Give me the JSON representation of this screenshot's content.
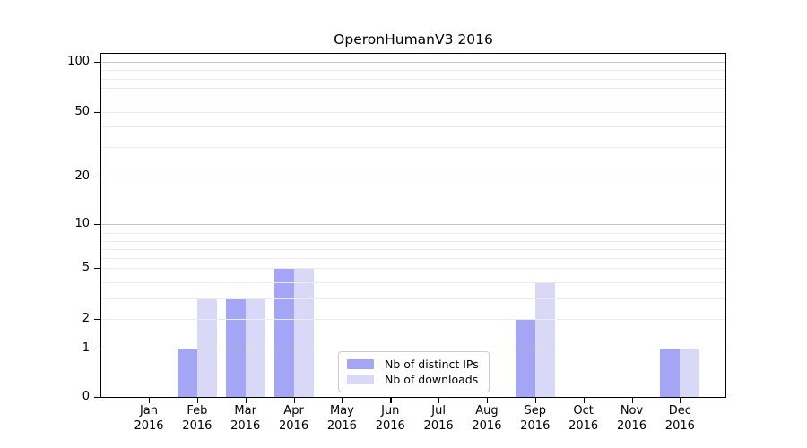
{
  "figure": {
    "title": "OperonHumanV3 2016"
  },
  "chart_data": {
    "type": "bar",
    "title": "OperonHumanV3 2016",
    "categories": [
      "Jan",
      "Feb",
      "Mar",
      "Apr",
      "May",
      "Jun",
      "Jul",
      "Aug",
      "Sep",
      "Oct",
      "Nov",
      "Dec"
    ],
    "category_year": "2016",
    "series": [
      {
        "name": "Nb of distinct IPs",
        "color": "#a5a5f6",
        "values": [
          0,
          1,
          3,
          5,
          0,
          0,
          0,
          0,
          2,
          0,
          0,
          1
        ]
      },
      {
        "name": "Nb of downloads",
        "color": "#d9d9f7",
        "values": [
          0,
          3,
          3,
          5,
          0,
          0,
          0,
          0,
          4,
          0,
          0,
          1
        ]
      }
    ],
    "xlabel": "",
    "ylabel": "",
    "y_axis": {
      "scale": "log-like",
      "tick_values": [
        0,
        1,
        2,
        5,
        10,
        20,
        50,
        100
      ],
      "tick_labels": [
        "0",
        "1",
        "2",
        "5",
        "10",
        "20",
        "50",
        "100"
      ]
    },
    "grid": {
      "horizontal": true,
      "major_values": [
        1,
        10,
        100
      ],
      "minor_values": [
        2,
        3,
        4,
        5,
        6,
        7,
        8,
        9,
        20,
        30,
        40,
        50,
        60,
        70,
        80,
        90
      ]
    },
    "legend_position": "lower-center"
  },
  "colors": {
    "bar_distinct_ips": "#a5a5f6",
    "bar_downloads": "#d9d9f7",
    "grid_major": "#c6c6c6",
    "grid_minor": "#ebebeb",
    "spine": "#000000",
    "legend_border": "#cccccc",
    "text": "#000000"
  }
}
